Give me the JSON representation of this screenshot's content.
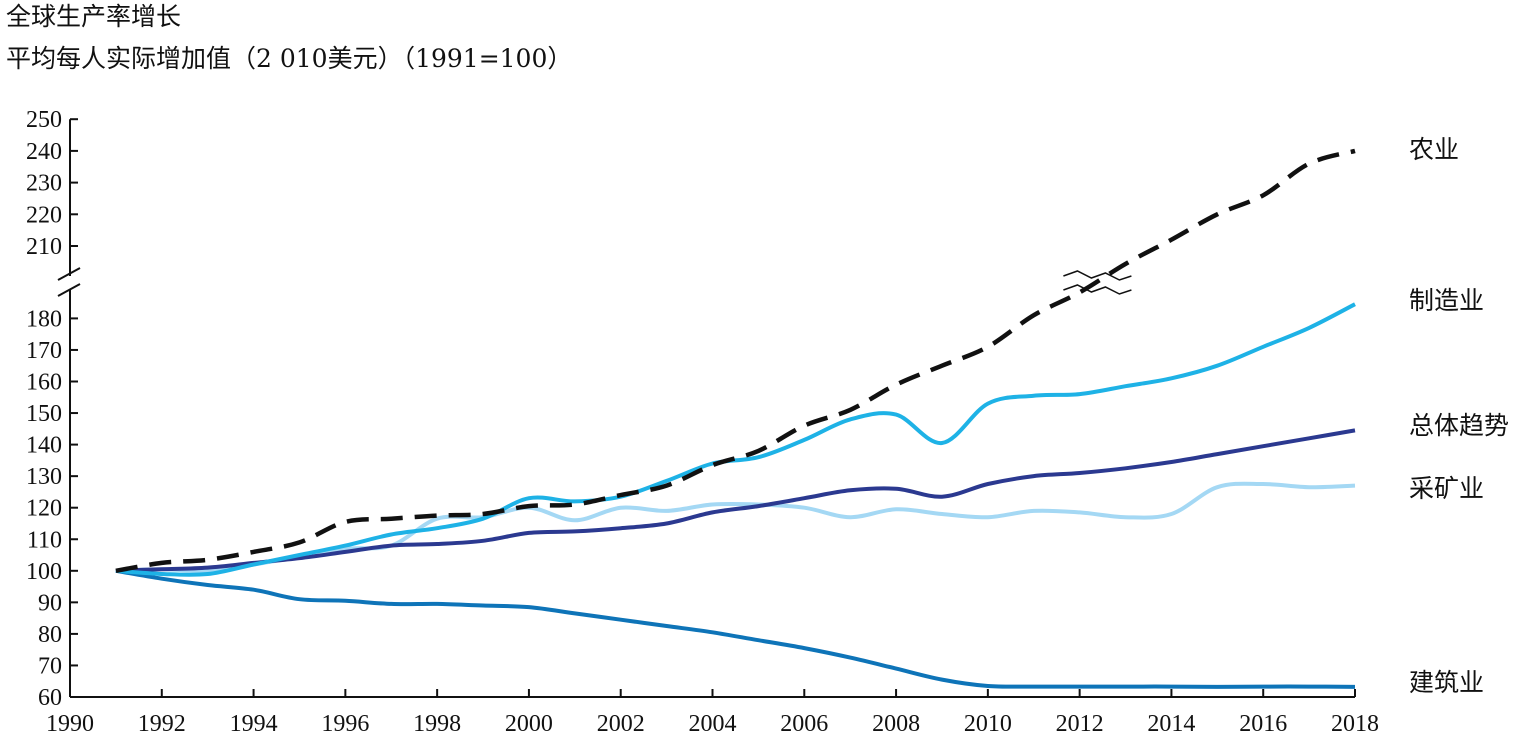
{
  "title": "全球生产率增长",
  "subtitle": "平均每人实际增加值（2 010美元）（1991=100）",
  "chart_data": {
    "type": "line",
    "title": "全球生产率增长",
    "subtitle": "平均每人实际增加值（2 010美元）（1991=100）",
    "xlabel": "",
    "ylabel": "",
    "xlim": [
      1990,
      2018
    ],
    "x_ticks": [
      "1990",
      "1992",
      "1994",
      "1996",
      "1998",
      "2000",
      "2002",
      "2004",
      "2006",
      "2008",
      "2010",
      "2012",
      "2014",
      "2016",
      "2018"
    ],
    "y_ticks": [
      "250",
      "240",
      "230",
      "220",
      "210",
      "180",
      "170",
      "160",
      "150",
      "140",
      "130",
      "120",
      "110",
      "100",
      "90",
      "80",
      "70",
      "60"
    ],
    "y_axis_break": {
      "lower_top": 185,
      "upper_bottom": 205
    },
    "grid": false,
    "series": [
      {
        "name": "农业",
        "color": "#111111",
        "dash": true,
        "x": [
          1991,
          1992,
          1993,
          1994,
          1995,
          1996,
          1997,
          1998,
          1999,
          2000,
          2001,
          2002,
          2003,
          2004,
          2005,
          2006,
          2007,
          2008,
          2009,
          2010,
          2011,
          2012,
          2013,
          2014,
          2015,
          2016,
          2017,
          2018
        ],
        "y": [
          100,
          102.5,
          103.5,
          106,
          109,
          115.5,
          116.5,
          117.5,
          118,
          120.5,
          121,
          124,
          127,
          133.5,
          138,
          146,
          151,
          159,
          165,
          171,
          181,
          190,
          204,
          212,
          220,
          226,
          236,
          240
        ]
      },
      {
        "name": "制造业",
        "color": "#1eb2e6",
        "dash": false,
        "x": [
          1991,
          1992,
          1993,
          1994,
          1995,
          1996,
          1997,
          1998,
          1999,
          2000,
          2001,
          2002,
          2003,
          2004,
          2005,
          2006,
          2007,
          2008,
          2009,
          2010,
          2011,
          2012,
          2013,
          2014,
          2015,
          2016,
          2017,
          2018
        ],
        "y": [
          100,
          99,
          99,
          102,
          105,
          108,
          111.5,
          113.5,
          116.5,
          123,
          122,
          123.5,
          128.5,
          134,
          136,
          141.5,
          148,
          149.5,
          140.5,
          153,
          155.5,
          156,
          158.5,
          161,
          165,
          171,
          177,
          184.5
        ]
      },
      {
        "name": "总体趋势",
        "color": "#2b3990",
        "dash": false,
        "x": [
          1991,
          1992,
          1993,
          1994,
          1995,
          1996,
          1997,
          1998,
          1999,
          2000,
          2001,
          2002,
          2003,
          2004,
          2005,
          2006,
          2007,
          2008,
          2009,
          2010,
          2011,
          2012,
          2013,
          2014,
          2015,
          2016,
          2017,
          2018
        ],
        "y": [
          100,
          100.5,
          101,
          102.5,
          104,
          106,
          108,
          108.5,
          109.5,
          112,
          112.5,
          113.5,
          115,
          118.5,
          120.5,
          123,
          125.5,
          126,
          123.5,
          127.5,
          130,
          131,
          132.5,
          134.5,
          137,
          139.5,
          142,
          144.5
        ]
      },
      {
        "name": "采矿业",
        "color": "#a4d8f4",
        "dash": false,
        "x": [
          1991,
          1992,
          1993,
          1994,
          1995,
          1996,
          1997,
          1998,
          1999,
          2000,
          2001,
          2002,
          2003,
          2004,
          2005,
          2006,
          2007,
          2008,
          2009,
          2010,
          2011,
          2012,
          2013,
          2014,
          2015,
          2016,
          2017,
          2018
        ],
        "y": [
          100,
          100.5,
          100,
          102,
          104.5,
          107,
          108,
          116.5,
          117,
          120,
          116,
          120,
          119,
          121,
          121,
          120,
          117,
          119.5,
          118,
          117,
          119,
          118.5,
          117,
          118,
          126.5,
          127.5,
          126.5,
          127
        ]
      },
      {
        "name": "建筑业",
        "color": "#0e74b8",
        "dash": false,
        "x": [
          1991,
          1992,
          1993,
          1994,
          1995,
          1996,
          1997,
          1998,
          1999,
          2000,
          2001,
          2002,
          2003,
          2004,
          2005,
          2006,
          2007,
          2008,
          2009,
          2010,
          2011,
          2012,
          2013,
          2014,
          2015,
          2016,
          2017,
          2018
        ],
        "y": [
          100,
          97.5,
          95.5,
          94,
          91,
          90.5,
          89.5,
          89.5,
          89,
          88.5,
          86.5,
          84.5,
          82.5,
          80.5,
          78,
          75.5,
          72.5,
          69,
          65.5,
          63.5,
          63.3,
          63.3,
          63.3,
          63.3,
          63.2,
          63.3,
          63.3,
          63.2
        ]
      }
    ]
  }
}
